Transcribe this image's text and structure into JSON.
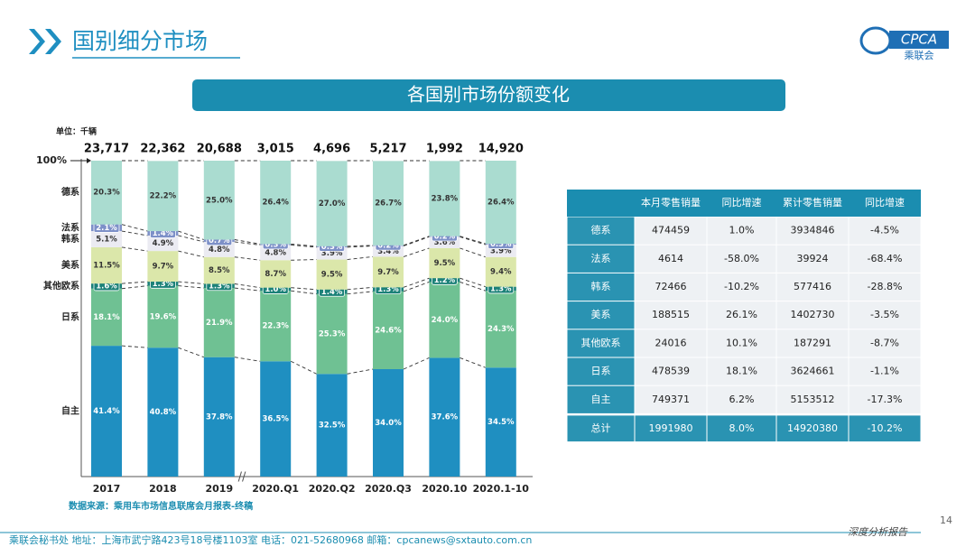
{
  "header": {
    "title": "国别细分市场",
    "banner": "各国别市场份额变化",
    "logo_text": "CPCA",
    "logo_sub": "乘联会"
  },
  "chart_data": {
    "type": "bar",
    "stacked": true,
    "unit": "单位：千辆",
    "source": "数据来源：乘用车市场信息联席会月报表-终稿",
    "categories": [
      "2017",
      "2018",
      "2019",
      "2020.Q1",
      "2020.Q2",
      "2020.Q3",
      "2020.10",
      "2020.1-10"
    ],
    "ylim": [
      0,
      100
    ],
    "yticks": [
      {
        "value": 100,
        "label": "100%"
      }
    ],
    "totals": {
      "values": [
        23717,
        22362,
        20688,
        3015,
        4696,
        5217,
        1992,
        14920
      ],
      "value_labels": [
        "23,717",
        "22,362",
        "20,688",
        "3,015",
        "4,696",
        "5,217",
        "1,992",
        "14,920"
      ]
    },
    "series": [
      {
        "name": "自主",
        "color": "#1f8fc1",
        "values": [
          41.4,
          40.8,
          37.8,
          36.5,
          32.5,
          34.0,
          37.6,
          34.5
        ],
        "value_labels": [
          "41.4%",
          "40.8%",
          "37.8%",
          "36.5%",
          "32.5%",
          "34.0%",
          "37.6%",
          "34.5%"
        ]
      },
      {
        "name": "日系",
        "color": "#6fc193",
        "values": [
          18.1,
          19.6,
          21.9,
          22.3,
          25.3,
          24.6,
          24.0,
          24.3
        ],
        "value_labels": [
          "18.1%",
          "19.6%",
          "21.9%",
          "22.3%",
          "25.3%",
          "24.6%",
          "24.0%",
          "24.3%"
        ]
      },
      {
        "name": "其他欧系",
        "color": "#1b8178",
        "values": [
          1.6,
          1.3,
          1.3,
          1.0,
          1.4,
          1.3,
          1.2,
          1.3
        ],
        "value_labels": [
          "1.6%",
          "1.3%",
          "1.3%",
          "1.0%",
          "1.4%",
          "1.3%",
          "1.2%",
          "1.3%"
        ]
      },
      {
        "name": "美系",
        "color": "#dbe7aa",
        "values": [
          11.5,
          9.7,
          8.5,
          8.7,
          9.5,
          9.7,
          9.5,
          9.4
        ],
        "value_labels": [
          "11.5%",
          "9.7%",
          "8.5%",
          "8.7%",
          "9.5%",
          "9.7%",
          "9.5%",
          "9.4%"
        ]
      },
      {
        "name": "韩系",
        "color": "#ebebf2",
        "values": [
          5.1,
          4.9,
          4.8,
          4.8,
          3.9,
          3.4,
          3.6,
          3.9
        ],
        "value_labels": [
          "5.1%",
          "4.9%",
          "4.8%",
          "4.8%",
          "3.9%",
          "3.4%",
          "3.6%",
          "3.9%"
        ]
      },
      {
        "name": "法系",
        "color": "#7d90c8",
        "values": [
          2.1,
          1.4,
          0.7,
          0.3,
          0.3,
          0.2,
          0.2,
          0.3
        ],
        "value_labels": [
          "2.1%",
          "1.4%",
          "0.7%",
          "0.3%",
          "0.3%",
          "0.2%",
          "0.2%",
          "0.3%"
        ]
      },
      {
        "name": "德系",
        "color": "#aadcd0",
        "values": [
          20.3,
          22.2,
          25.0,
          26.4,
          27.0,
          26.7,
          23.8,
          26.4
        ],
        "value_labels": [
          "20.3%",
          "22.2%",
          "25.0%",
          "26.4%",
          "27.0%",
          "26.7%",
          "23.8%",
          "26.4%"
        ]
      }
    ]
  },
  "table": {
    "columns": [
      "本月零售销量",
      "同比增速",
      "累计零售销量",
      "同比增速"
    ],
    "rows": [
      [
        "德系",
        "474459",
        "1.0%",
        "3934846",
        "-4.5%"
      ],
      [
        "法系",
        "4614",
        "-58.0%",
        "39924",
        "-68.4%"
      ],
      [
        "韩系",
        "72466",
        "-10.2%",
        "577416",
        "-28.8%"
      ],
      [
        "美系",
        "188515",
        "26.1%",
        "1402730",
        "-3.5%"
      ],
      [
        "其他欧系",
        "24016",
        "10.1%",
        "187291",
        "-8.7%"
      ],
      [
        "日系",
        "478539",
        "18.1%",
        "3624661",
        "-1.1%"
      ],
      [
        "自主",
        "749371",
        "6.2%",
        "5153512",
        "-17.3%"
      ],
      [
        "总计",
        "1991980",
        "8.0%",
        "14920380",
        "-10.2%"
      ]
    ]
  },
  "footer": {
    "contact": "乘联会秘书处  地址：上海市武宁路423号18号楼1103室  电话：021-52680968  邮箱：cpcanews@sxtauto.com.cn",
    "report": "深度分析报告",
    "page": "14"
  }
}
